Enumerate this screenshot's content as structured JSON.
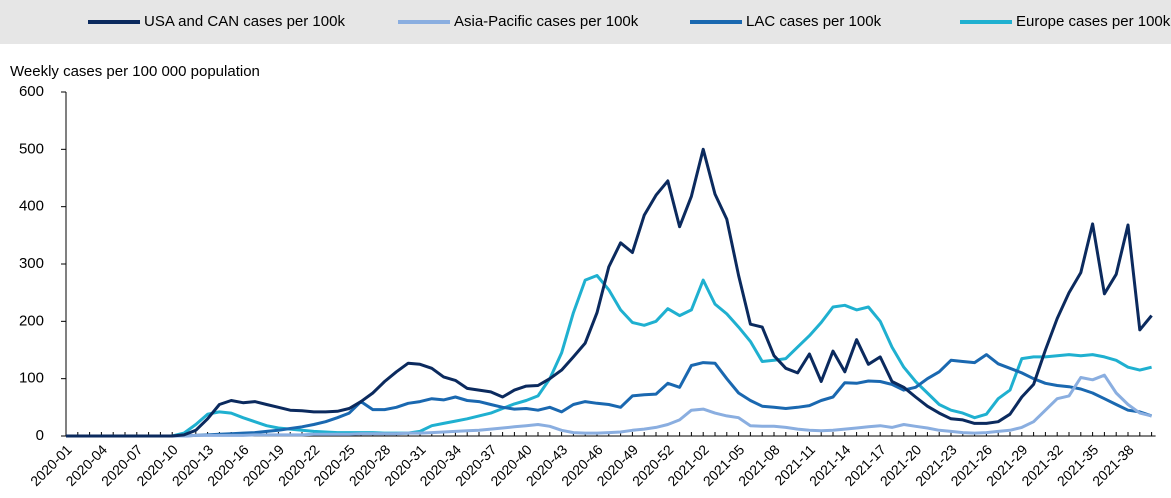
{
  "chart_data": {
    "type": "line",
    "y_axis_label": "Weekly cases per 100 000 population",
    "categories": [
      "2020-01",
      null,
      null,
      "2020-04",
      null,
      null,
      "2020-07",
      null,
      null,
      "2020-10",
      null,
      null,
      "2020-13",
      null,
      null,
      "2020-16",
      null,
      null,
      "2020-19",
      null,
      null,
      "2020-22",
      null,
      null,
      "2020-25",
      null,
      null,
      "2020-28",
      null,
      null,
      "2020-31",
      null,
      null,
      "2020-34",
      null,
      null,
      "2020-37",
      null,
      null,
      "2020-40",
      null,
      null,
      "2020-43",
      null,
      null,
      "2020-46",
      null,
      null,
      "2020-49",
      null,
      null,
      "2020-52",
      null,
      null,
      "2021-02",
      null,
      null,
      "2021-05",
      null,
      null,
      "2021-08",
      null,
      null,
      "2021-11",
      null,
      null,
      "2021-14",
      null,
      null,
      "2021-17",
      null,
      null,
      "2021-20",
      null,
      null,
      "2021-23",
      null,
      null,
      "2021-26",
      null,
      null,
      "2021-29",
      null,
      null,
      "2021-32",
      null,
      null,
      "2021-35",
      null,
      null,
      "2021-38",
      null,
      null
    ],
    "series": [
      {
        "name": "USA and CAN cases per 100k",
        "color": "#0b2a5e",
        "values": [
          0,
          0,
          0,
          0,
          0,
          0,
          0,
          0,
          0,
          0,
          2,
          10,
          30,
          55,
          62,
          58,
          60,
          55,
          50,
          45,
          44,
          42,
          42,
          43,
          48,
          60,
          75,
          95,
          112,
          127,
          125,
          118,
          103,
          97,
          83,
          80,
          77,
          68,
          80,
          87,
          88,
          100,
          115,
          138,
          162,
          215,
          295,
          337,
          320,
          385,
          420,
          445,
          365,
          418,
          500,
          422,
          378,
          280,
          195,
          190,
          140,
          118,
          110,
          143,
          95,
          148,
          112,
          168,
          125,
          138,
          95,
          85,
          68,
          52,
          40,
          30,
          28,
          22,
          22,
          25,
          38,
          68,
          90,
          150,
          205,
          250,
          285,
          370,
          248,
          282,
          368,
          185,
          210
        ]
      },
      {
        "name": "Asia-Pacific cases per 100k",
        "color": "#8aaee0",
        "values": [
          0,
          0,
          0,
          0,
          0,
          0,
          0,
          0,
          0,
          0,
          0,
          1,
          1,
          1,
          1,
          1,
          2,
          2,
          2,
          2,
          2,
          3,
          3,
          3,
          3,
          4,
          4,
          4,
          4,
          5,
          5,
          6,
          7,
          8,
          9,
          10,
          12,
          14,
          16,
          18,
          20,
          17,
          10,
          6,
          5,
          5,
          6,
          7,
          10,
          12,
          15,
          20,
          28,
          45,
          47,
          40,
          35,
          32,
          18,
          17,
          17,
          15,
          12,
          10,
          9,
          10,
          12,
          14,
          16,
          18,
          15,
          20,
          17,
          14,
          10,
          8,
          6,
          5,
          6,
          8,
          10,
          15,
          25,
          45,
          65,
          70,
          102,
          98,
          106,
          75,
          55,
          40,
          35
        ]
      },
      {
        "name": "LAC cases per 100k",
        "color": "#1a68b0",
        "values": [
          0,
          0,
          0,
          0,
          0,
          0,
          0,
          0,
          0,
          0,
          0,
          1,
          2,
          3,
          4,
          5,
          6,
          8,
          10,
          13,
          16,
          20,
          25,
          32,
          40,
          60,
          46,
          46,
          50,
          57,
          60,
          65,
          63,
          68,
          62,
          60,
          55,
          50,
          47,
          48,
          45,
          50,
          42,
          55,
          60,
          57,
          55,
          50,
          70,
          72,
          73,
          92,
          85,
          123,
          128,
          127,
          100,
          75,
          62,
          52,
          50,
          48,
          50,
          53,
          62,
          68,
          93,
          92,
          96,
          95,
          90,
          80,
          85,
          100,
          112,
          132,
          130,
          128,
          142,
          126,
          118,
          110,
          100,
          92,
          88,
          86,
          82,
          75,
          65,
          55,
          45,
          42,
          35
        ]
      },
      {
        "name": "Europe cases per 100k",
        "color": "#1fb0d0",
        "values": [
          0,
          0,
          0,
          0,
          0,
          0,
          0,
          0,
          0,
          0,
          5,
          20,
          38,
          42,
          40,
          32,
          25,
          18,
          14,
          12,
          10,
          8,
          7,
          6,
          6,
          6,
          6,
          5,
          5,
          5,
          8,
          18,
          22,
          26,
          30,
          35,
          40,
          48,
          56,
          62,
          70,
          100,
          145,
          215,
          272,
          280,
          255,
          220,
          198,
          193,
          200,
          222,
          210,
          220,
          272,
          230,
          213,
          190,
          165,
          130,
          132,
          135,
          155,
          175,
          198,
          225,
          228,
          220,
          225,
          200,
          155,
          120,
          95,
          75,
          55,
          45,
          40,
          32,
          38,
          65,
          80,
          135,
          138,
          138,
          140,
          142,
          140,
          142,
          138,
          132,
          120,
          115,
          120
        ]
      }
    ],
    "ylim": [
      0,
      600
    ],
    "yticks": [
      0,
      100,
      200,
      300,
      400,
      500,
      600
    ],
    "grid": false
  }
}
